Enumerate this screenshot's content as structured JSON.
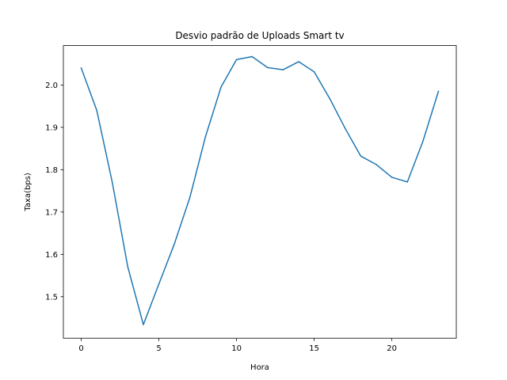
{
  "chart_data": {
    "type": "line",
    "title": "Desvio padrão de Uploads Smart tv",
    "xlabel": "Hora",
    "ylabel": "Taxa(bps)",
    "xlim": [
      -1.15,
      24.15
    ],
    "ylim": [
      1.402,
      2.093
    ],
    "xticks": [
      0,
      5,
      10,
      15,
      20
    ],
    "yticks": [
      1.5,
      1.6,
      1.7,
      1.8,
      1.9,
      2.0
    ],
    "xtick_labels": [
      "0",
      "5",
      "10",
      "15",
      "20"
    ],
    "ytick_labels": [
      "1.5",
      "1.6",
      "1.7",
      "1.8",
      "1.9",
      "2.0"
    ],
    "grid": false,
    "series": [
      {
        "color": "#1f77b4",
        "x": [
          0,
          1,
          2,
          3,
          4,
          5,
          6,
          7,
          8,
          9,
          10,
          11,
          12,
          13,
          14,
          15,
          16,
          17,
          18,
          19,
          20,
          21,
          22,
          23
        ],
        "y": [
          2.04,
          1.94,
          1.77,
          1.57,
          1.434,
          1.53,
          1.625,
          1.735,
          1.878,
          1.995,
          2.06,
          2.067,
          2.041,
          2.036,
          2.055,
          2.031,
          1.968,
          1.897,
          1.832,
          1.812,
          1.782,
          1.771,
          1.867,
          1.985
        ]
      }
    ]
  }
}
